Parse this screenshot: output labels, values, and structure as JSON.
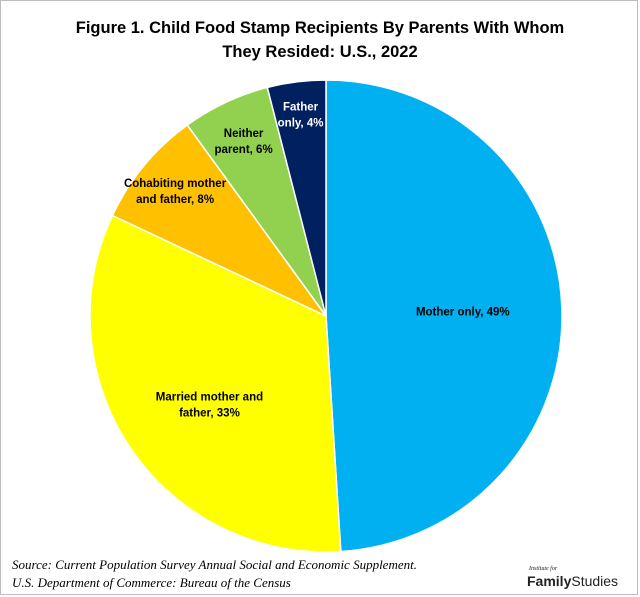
{
  "title_lines": [
    "Figure 1. Child Food Stamp Recipients By Parents With Whom",
    "They Resided: U.S., 2022"
  ],
  "source_lines": [
    "Source: Current Population Survey Annual Social and Economic Supplement.",
    "U.S. Department of Commerce: Bureau of the Census"
  ],
  "logo": {
    "small": "Institute for",
    "family": "Family",
    "studies": "Studies"
  },
  "chart_data": {
    "type": "pie",
    "start": "12 o'clock",
    "direction": "clockwise",
    "slices": [
      {
        "label_lines": [
          "Mother only, 49%"
        ],
        "value": 49,
        "color": "#00B0F0",
        "text_color": "#000000"
      },
      {
        "label_lines": [
          "Married mother and",
          "father, 33%"
        ],
        "value": 33,
        "color": "#FFFF00",
        "text_color": "#000000"
      },
      {
        "label_lines": [
          "Cohabiting mother",
          "and father, 8%"
        ],
        "value": 8,
        "color": "#FFC000",
        "text_color": "#000000"
      },
      {
        "label_lines": [
          "Neither",
          "parent, 6%"
        ],
        "value": 6,
        "color": "#92D050",
        "text_color": "#000000"
      },
      {
        "label_lines": [
          "Father",
          "only, 4%"
        ],
        "value": 4,
        "color": "#002060",
        "text_color": "#FFFFFF"
      }
    ]
  }
}
